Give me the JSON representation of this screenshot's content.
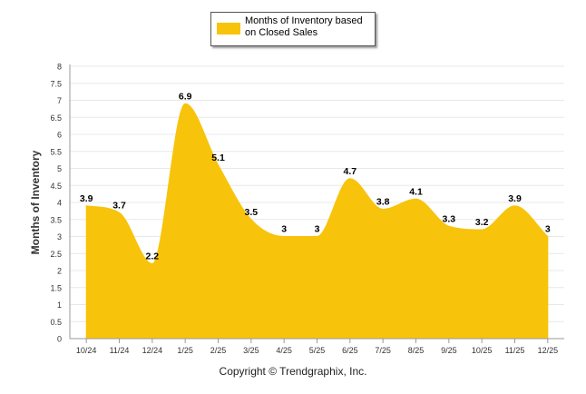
{
  "chart_data": {
    "type": "area",
    "title": "",
    "legend": {
      "label": "Months of Inventory based on Closed Sales",
      "placement": "top-center"
    },
    "xlabel": "",
    "ylabel": "Months of Inventory",
    "categories": [
      "10/24",
      "11/24",
      "12/24",
      "1/25",
      "2/25",
      "3/25",
      "4/25",
      "5/25",
      "6/25",
      "7/25",
      "8/25",
      "9/25",
      "10/25",
      "11/25",
      "12/25"
    ],
    "series": [
      {
        "name": "Months of Inventory based on Closed Sales",
        "values": [
          3.9,
          3.7,
          2.2,
          6.9,
          5.1,
          3.5,
          3,
          3,
          4.7,
          3.8,
          4.1,
          3.3,
          3.2,
          3.9,
          3
        ],
        "labels": [
          "3.9",
          "3.7",
          "2.2",
          "6.9",
          "5.1",
          "3.5",
          "3",
          "3",
          "4.7",
          "3.8",
          "4.1",
          "3.3",
          "3.2",
          "3.9",
          "3"
        ]
      }
    ],
    "ylim": [
      0,
      8
    ],
    "yticks": [
      0,
      0.5,
      1,
      1.5,
      2,
      2.5,
      3,
      3.5,
      4,
      4.5,
      5,
      5.5,
      6,
      6.5,
      7,
      7.5,
      8
    ],
    "ytick_labels": [
      "0",
      "0.5",
      "1",
      "1.5",
      "2",
      "2.5",
      "3",
      "3.5",
      "4",
      "4.5",
      "5",
      "5.5",
      "6",
      "6.5",
      "7",
      "7.5",
      "8"
    ],
    "grid": true,
    "colors": {
      "fill": "#f8c30b",
      "grid": "#e8e8e8",
      "axis": "#9a9a9a"
    }
  },
  "footer": {
    "copyright": "Copyright © Trendgraphix, Inc."
  }
}
